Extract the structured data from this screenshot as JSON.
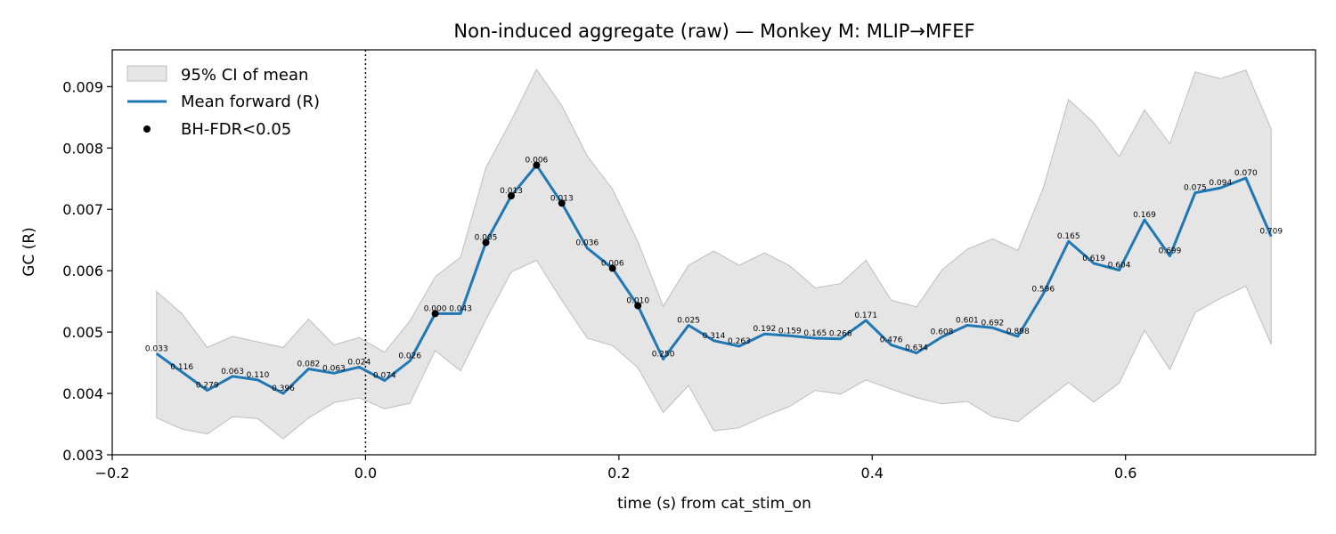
{
  "chart_data": {
    "type": "line",
    "title": "Non-induced aggregate (raw) — Monkey M: MLIP→MFEF",
    "xlabel": "time (s) from cat_stim_on",
    "ylabel": "GC (R)",
    "xlim": [
      -0.2,
      0.75
    ],
    "ylim": [
      0.003,
      0.0096
    ],
    "x_ticks": [
      -0.2,
      0.0,
      0.2,
      0.4,
      0.6
    ],
    "x_tick_labels": [
      "−0.2",
      "0.0",
      "0.2",
      "0.4",
      "0.6"
    ],
    "y_ticks": [
      0.003,
      0.004,
      0.005,
      0.006,
      0.007,
      0.008,
      0.009
    ],
    "y_tick_labels": [
      "0.003",
      "0.004",
      "0.005",
      "0.006",
      "0.007",
      "0.008",
      "0.009"
    ],
    "vline_x": 0.0,
    "legend": {
      "placement": "top-left",
      "entries": [
        "95% CI of mean",
        "Mean forward (R)",
        "BH-FDR<0.05"
      ]
    },
    "colors": {
      "mean_line": "#1f77b4",
      "ci_fill": "#d3d3d3",
      "significant_marker": "#000000"
    },
    "x": [
      -0.165,
      -0.145,
      -0.125,
      -0.105,
      -0.085,
      -0.065,
      -0.045,
      -0.025,
      -0.005,
      0.015,
      0.035,
      0.055,
      0.075,
      0.095,
      0.115,
      0.135,
      0.155,
      0.175,
      0.195,
      0.215,
      0.235,
      0.255,
      0.275,
      0.295,
      0.315,
      0.335,
      0.355,
      0.375,
      0.395,
      0.415,
      0.435,
      0.455,
      0.475,
      0.495,
      0.515,
      0.535,
      0.555,
      0.575,
      0.595,
      0.615,
      0.635,
      0.655,
      0.675,
      0.695,
      0.715
    ],
    "series": [
      {
        "name": "Mean forward (R)",
        "values": [
          0.00465,
          0.00435,
          0.00405,
          0.00428,
          0.00422,
          0.004,
          0.0044,
          0.00433,
          0.00443,
          0.00421,
          0.00453,
          0.0053,
          0.0053,
          0.00646,
          0.00722,
          0.00772,
          0.0071,
          0.00637,
          0.00604,
          0.00543,
          0.00456,
          0.00511,
          0.00486,
          0.00477,
          0.00497,
          0.00494,
          0.0049,
          0.00489,
          0.00519,
          0.00479,
          0.00466,
          0.00492,
          0.00511,
          0.00507,
          0.00493,
          0.00562,
          0.00648,
          0.00612,
          0.00601,
          0.00683,
          0.00624,
          0.00727,
          0.00735,
          0.00751,
          0.00656
        ]
      },
      {
        "name": "95% CI of mean",
        "lower": [
          0.0036,
          0.00342,
          0.00334,
          0.00362,
          0.00359,
          0.00326,
          0.0036,
          0.00385,
          0.00393,
          0.00375,
          0.00384,
          0.0047,
          0.00437,
          0.0052,
          0.00598,
          0.00617,
          0.00552,
          0.0049,
          0.00478,
          0.00442,
          0.00369,
          0.00413,
          0.00339,
          0.00344,
          0.00363,
          0.00379,
          0.00405,
          0.00399,
          0.00422,
          0.00407,
          0.00393,
          0.00383,
          0.00387,
          0.00362,
          0.00354,
          0.00386,
          0.00418,
          0.00386,
          0.00417,
          0.00503,
          0.00439,
          0.00532,
          0.00555,
          0.00575,
          0.0048
        ],
        "upper": [
          0.00566,
          0.0053,
          0.00475,
          0.00493,
          0.00484,
          0.00475,
          0.00521,
          0.00479,
          0.00491,
          0.00467,
          0.00518,
          0.0059,
          0.00622,
          0.00768,
          0.00845,
          0.00928,
          0.00869,
          0.00787,
          0.00733,
          0.00647,
          0.00542,
          0.00609,
          0.00632,
          0.00609,
          0.00629,
          0.00608,
          0.00572,
          0.00579,
          0.00617,
          0.00552,
          0.00541,
          0.00601,
          0.00635,
          0.00652,
          0.00633,
          0.00734,
          0.00879,
          0.00841,
          0.00786,
          0.00862,
          0.00807,
          0.00924,
          0.00913,
          0.00927,
          0.00831
        ]
      }
    ],
    "point_labels": [
      "0.033",
      "0.116",
      "0.279",
      "0.063",
      "0.110",
      "0.396",
      "0.082",
      "0.063",
      "0.024",
      "0.074",
      "0.026",
      "0.000",
      "0.043",
      "0.005",
      "0.013",
      "0.006",
      "0.013",
      "0.036",
      "0.006",
      "0.010",
      "0.250",
      "0.025",
      "0.314",
      "0.263",
      "0.192",
      "0.159",
      "0.165",
      "0.266",
      "0.171",
      "0.476",
      "0.634",
      "0.608",
      "0.601",
      "0.692",
      "0.898",
      "0.596",
      "0.165",
      "0.619",
      "0.604",
      "0.169",
      "0.699",
      "0.075",
      "0.094",
      "0.070",
      "0.709"
    ],
    "significant": [
      false,
      false,
      false,
      false,
      false,
      false,
      false,
      false,
      false,
      false,
      false,
      true,
      false,
      true,
      true,
      true,
      true,
      false,
      true,
      true,
      false,
      false,
      false,
      false,
      false,
      false,
      false,
      false,
      false,
      false,
      false,
      false,
      false,
      false,
      false,
      false,
      false,
      false,
      false,
      false,
      false,
      false,
      false,
      false,
      false
    ]
  }
}
